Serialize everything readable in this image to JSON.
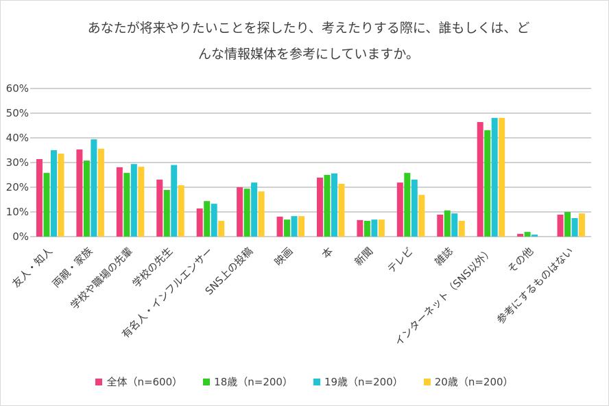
{
  "chart_data": {
    "type": "bar",
    "title": "あなたが将来やりたいことを探したり、考えたりする際に、誰もしくは、どんな情報媒体を参考にしていますか。",
    "title_lines": [
      "あなたが将来やりたいことを探したり、考えたりする際に、誰もしくは、ど",
      "んな情報媒体を参考にしていますか。"
    ],
    "categories": [
      "友人・知人",
      "両親・家族",
      "学校や職場の先輩",
      "学校の先生",
      "有名人・インフルエンサー",
      "SNS上の投稿",
      "映画",
      "本",
      "新聞",
      "テレビ",
      "雑誌",
      "インターネット（SNS以外）",
      "その他",
      "参考にするものはない"
    ],
    "series": [
      {
        "name": "全体（n=600）",
        "color": "#f0407a",
        "values": [
          31.4,
          35.3,
          28.1,
          23.1,
          11.4,
          20.0,
          8.1,
          23.9,
          6.7,
          21.9,
          8.9,
          46.4,
          1.1,
          8.9
        ]
      },
      {
        "name": "18歳（n=200）",
        "color": "#33cc22",
        "values": [
          25.8,
          30.8,
          25.8,
          18.9,
          14.4,
          19.4,
          6.9,
          25.0,
          6.4,
          25.8,
          10.6,
          43.1,
          1.9,
          10.0
        ]
      },
      {
        "name": "19歳（n=200）",
        "color": "#22c4d4",
        "values": [
          35.0,
          39.4,
          29.4,
          29.0,
          13.3,
          21.9,
          8.3,
          25.6,
          6.9,
          23.1,
          9.4,
          48.1,
          0.8,
          7.5
        ]
      },
      {
        "name": "20歳（n=200）",
        "color": "#ffcc33",
        "values": [
          33.6,
          35.6,
          28.3,
          20.8,
          6.4,
          18.3,
          8.3,
          21.4,
          6.9,
          16.9,
          6.4,
          48.1,
          0.0,
          9.4
        ]
      }
    ],
    "yticks": [
      "0%",
      "10%",
      "20%",
      "30%",
      "40%",
      "50%",
      "60%"
    ],
    "ylim": [
      0,
      60
    ],
    "xlabel": "",
    "ylabel": "",
    "grid": true,
    "legend": "bottom"
  }
}
